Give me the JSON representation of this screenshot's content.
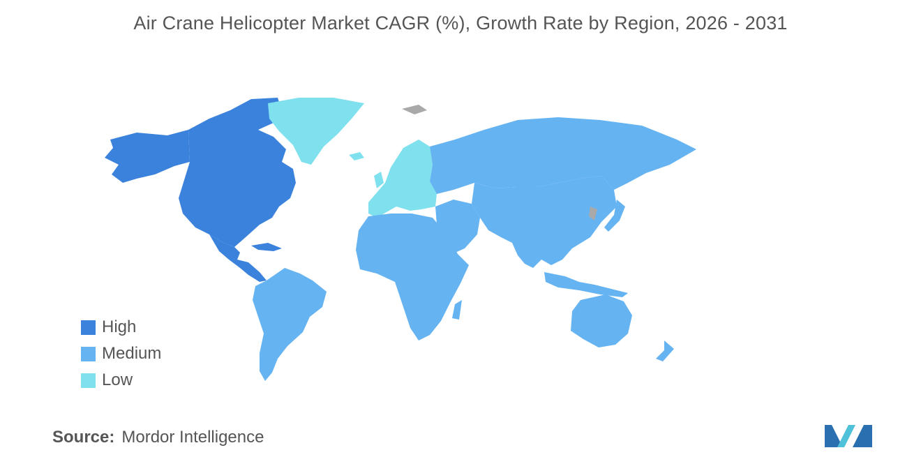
{
  "title": "Air Crane Helicopter Market CAGR (%), Growth Rate by Region, 2026 - 2031",
  "colors": {
    "high": "#3b82dd",
    "medium": "#66b3f2",
    "low": "#7fe0ee",
    "no_data": "#a9a9a9",
    "text": "#555555"
  },
  "legend": [
    {
      "label": "High",
      "color": "#3b82dd"
    },
    {
      "label": "Medium",
      "color": "#66b3f2"
    },
    {
      "label": "Low",
      "color": "#7fe0ee"
    }
  ],
  "regions": {
    "north_america": "High",
    "south_america": "Medium",
    "europe": "Low",
    "greenland": "Low",
    "asia_pacific": "Medium",
    "russia": "Medium",
    "middle_east_africa": "Medium",
    "australia": "Medium"
  },
  "source": {
    "label": "Source:",
    "value": "Mordor Intelligence"
  }
}
